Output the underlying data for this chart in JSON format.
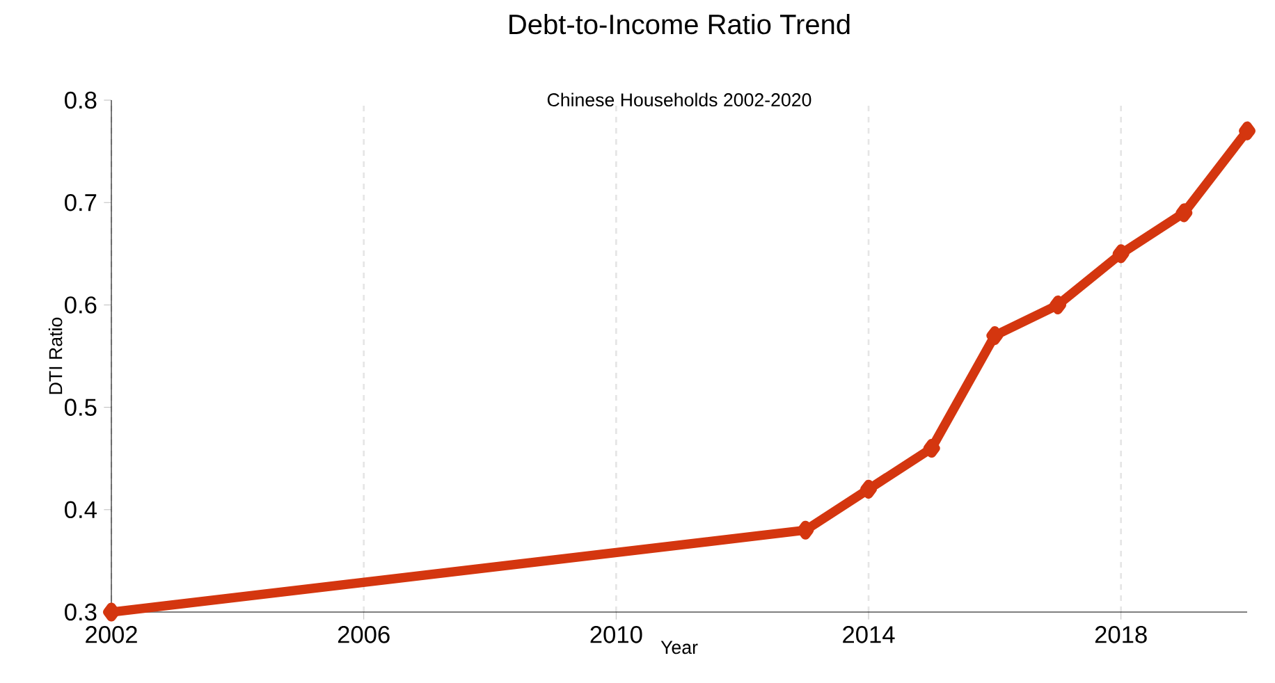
{
  "chart_data": {
    "type": "line",
    "title": "Debt-to-Income Ratio Trend",
    "subtitle": "Chinese Households 2002-2020",
    "xlabel": "Year",
    "ylabel": "DTI Ratio",
    "x": [
      2002,
      2013,
      2014,
      2015,
      2016,
      2017,
      2018,
      2019,
      2020
    ],
    "series": [
      {
        "color": "#d4360f",
        "values": [
          0.3,
          0.38,
          0.42,
          0.46,
          0.57,
          0.6,
          0.65,
          0.69,
          0.77
        ]
      }
    ],
    "xlim": [
      2002,
      2020
    ],
    "ylim": [
      0.3,
      0.8
    ],
    "xticks": [
      2002,
      2006,
      2010,
      2014,
      2018
    ],
    "yticks": [
      0.3,
      0.4,
      0.5,
      0.6,
      0.7,
      0.8
    ],
    "grid": "x",
    "marker": "diamond",
    "line_style": "solid"
  }
}
